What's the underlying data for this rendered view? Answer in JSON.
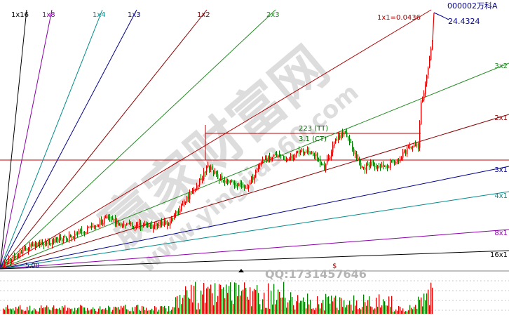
{
  "header": {
    "stock_code": "000002",
    "stock_name": "万科A",
    "price_label": "24.4324"
  },
  "gann": {
    "anchor_label": "5.00",
    "unit_label": "1x1=0.0436",
    "fan_lines": [
      {
        "label": "1x16",
        "color": "#000000"
      },
      {
        "label": "1x8",
        "color": "#8a00a8"
      },
      {
        "label": "1x4",
        "color": "#008b8b"
      },
      {
        "label": "1x3",
        "color": "#00008b"
      },
      {
        "label": "1x2",
        "color": "#8b0000"
      },
      {
        "label": "2x3",
        "color": "#228b22"
      },
      {
        "label": "1x1",
        "color": "#b00000"
      },
      {
        "label": "3x2",
        "color": "#228b22"
      },
      {
        "label": "2x1",
        "color": "#8b0000"
      },
      {
        "label": "3x1",
        "color": "#00008b"
      },
      {
        "label": "4x1",
        "color": "#008b8b"
      },
      {
        "label": "8x1",
        "color": "#8a00a8"
      },
      {
        "label": "16x1",
        "color": "#000000"
      }
    ]
  },
  "annotations": {
    "top_mark": "223 (TT)",
    "bottom_mark": "3.1 (CT)",
    "qq_text": "QQ:1731457646",
    "dollar_mark": "$"
  },
  "watermark": {
    "main_text": "赢家财富网",
    "url_text": "www.yingjia360.com"
  },
  "colors": {
    "up": "#e00000",
    "down": "#007a00",
    "horizontal_line": "#c00000",
    "background": "#ffffff",
    "label_blue": "#00008b"
  }
}
